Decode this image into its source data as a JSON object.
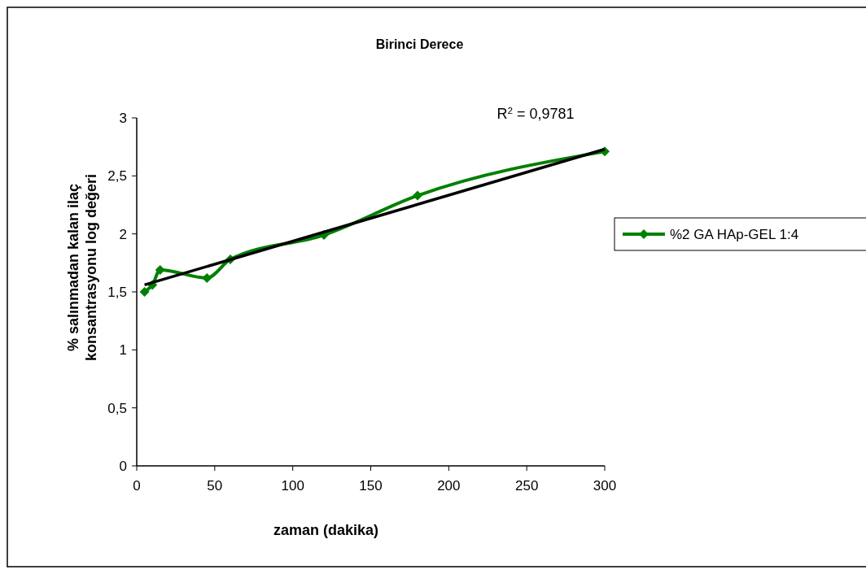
{
  "chart_data": {
    "type": "line",
    "title": "Birinci Derece",
    "xlabel": "zaman (dakika)",
    "ylabel": "% salınmadan kalan ilaç konsantrasyonu log değeri",
    "x": [
      5,
      10,
      15,
      45,
      60,
      120,
      180,
      300
    ],
    "series": [
      {
        "name": "%2 GA HAp-GEL 1:4",
        "color": "#008000",
        "values": [
          1.5,
          1.56,
          1.69,
          1.62,
          1.78,
          1.99,
          2.33,
          2.71
        ],
        "marker": "diamond"
      },
      {
        "type": "line",
        "color": "#000000",
        "x": [
          5,
          300
        ],
        "values": [
          1.56,
          2.73
        ],
        "marker": "none"
      }
    ],
    "annotations": [
      "R$^{2}$ = 0,9781"
    ],
    "xlim": [
      0,
      300
    ],
    "xticks": [
      0,
      50,
      100,
      150,
      200,
      250,
      300
    ],
    "ylim": [
      0,
      3
    ],
    "yticks": [
      0,
      {
        "value": 0.5,
        "label": "0,5"
      },
      1,
      {
        "value": 1.5,
        "label": "1,5"
      },
      2,
      {
        "value": 2.5,
        "label": "2,5"
      },
      3
    ],
    "grid": false,
    "legend": "right"
  }
}
